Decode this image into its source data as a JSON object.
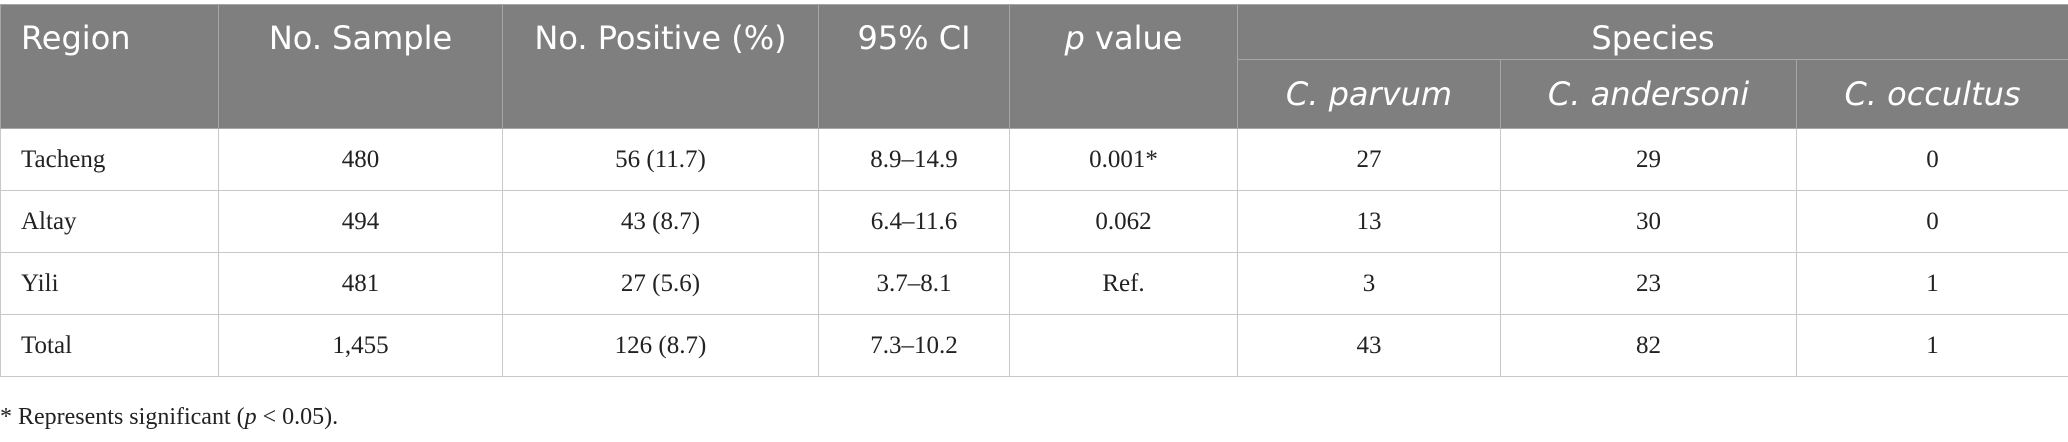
{
  "table": {
    "header": [
      "Region",
      "No. Sample",
      "No. Positive (%)",
      "95% CI",
      "p value",
      "Species"
    ],
    "species": [
      "C. parvum",
      "C. andersoni",
      "C. occultus"
    ],
    "rows": [
      [
        "Tacheng",
        "480",
        "56 (11.7)",
        "8.9–14.9",
        "0.001*",
        "27",
        "29",
        "0"
      ],
      [
        "Altay",
        "494",
        "43 (8.7)",
        "6.4–11.6",
        "0.062",
        "13",
        "30",
        "0"
      ],
      [
        "Yili",
        "481",
        "27 (5.6)",
        "3.7–8.1",
        "Ref.",
        "3",
        "23",
        "1"
      ],
      [
        "Total",
        "1,455",
        "126 (8.7)",
        "7.3–10.2",
        null,
        "43",
        "82",
        "1"
      ]
    ]
  },
  "footnote": [
    "* Represents significant (",
    "p",
    " < 0.05)."
  ]
}
